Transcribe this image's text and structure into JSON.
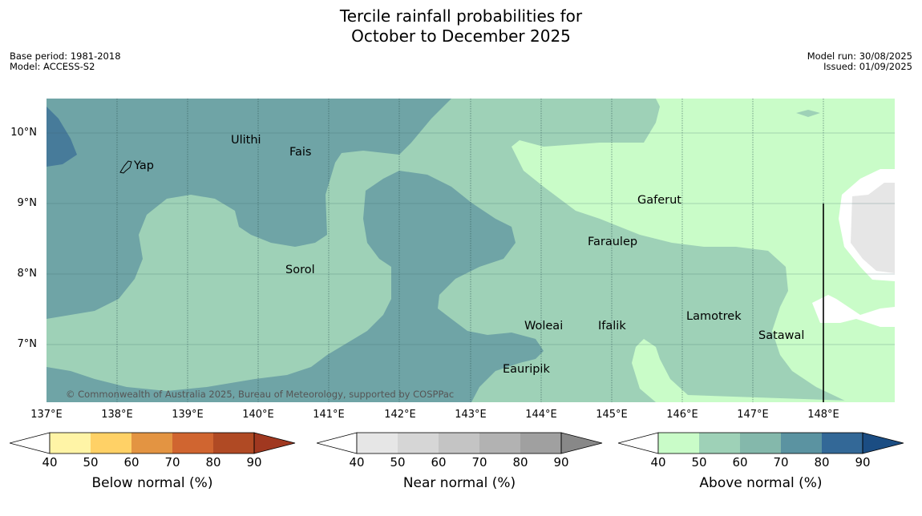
{
  "title_line1": "Tercile rainfall probabilities for",
  "title_line2": "October to December 2025",
  "base_period": "Base period: 1981-2018",
  "model": "Model: ACCESS-S2",
  "model_run": "Model run: 30/08/2025",
  "issued": "Issued: 01/09/2025",
  "copyright": "© Commonwealth of Australia 2025, Bureau of Meteorology, supported by COSPPac",
  "lat_labels": [
    "10°N",
    "9°N",
    "8°N",
    "7°N"
  ],
  "lon_labels": [
    "137°E",
    "138°E",
    "139°E",
    "140°E",
    "141°E",
    "142°E",
    "143°E",
    "144°E",
    "145°E",
    "146°E",
    "147°E",
    "148°E"
  ],
  "places": {
    "ulithi": "Ulithi",
    "fais": "Fais",
    "yap": "Yap",
    "gaferut": "Gaferut",
    "faraulep": "Faraulep",
    "sorol": "Sorol",
    "lamotrek": "Lamotrek",
    "woleai": "Woleai",
    "ifalik": "Ifalik",
    "satawal": "Satawal",
    "eauripik": "Eauripik"
  },
  "legends": {
    "below": {
      "title": "Below normal (%)",
      "ticks": [
        "40",
        "50",
        "60",
        "70",
        "80",
        "90"
      ],
      "colors": [
        "#fff4a6",
        "#ffd166",
        "#e39442",
        "#d06530",
        "#b04a24",
        "#a03820"
      ]
    },
    "near": {
      "title": "Near normal (%)",
      "ticks": [
        "40",
        "50",
        "60",
        "70",
        "80",
        "90"
      ],
      "colors": [
        "#e6e6e6",
        "#d6d6d6",
        "#c4c4c4",
        "#b2b2b2",
        "#a0a0a0",
        "#888888"
      ]
    },
    "above": {
      "title": "Above normal (%)",
      "ticks": [
        "40",
        "50",
        "60",
        "70",
        "80",
        "90"
      ],
      "colors": [
        "#c9fcc8",
        "#9ed1b7",
        "#84b8ab",
        "#5b93a1",
        "#336897",
        "#1b4d83"
      ]
    }
  },
  "map_colors": {
    "above_40_50": "#c9fcc8",
    "above_50_60": "#9ed1b7",
    "above_60_70": "#6fa4a6",
    "above_70_80": "#477b9a",
    "near_40_50": "#e6e6e6"
  }
}
